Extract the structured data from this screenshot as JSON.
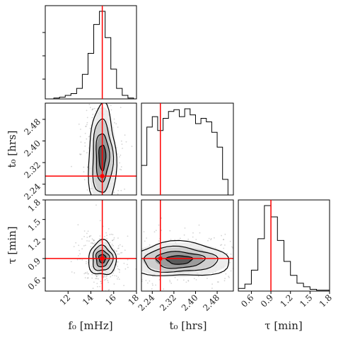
{
  "chart_data": {
    "type": "scatter",
    "title": "",
    "parameters": [
      {
        "label": "f₀ [mHz]",
        "range": [
          10,
          18
        ],
        "truth": 15,
        "ticks": [
          "12",
          "14",
          "16",
          "18"
        ],
        "tick_values": [
          12,
          14,
          16,
          18
        ]
      },
      {
        "label": "t₀ [hrs]",
        "range": [
          2.2,
          2.54
        ],
        "truth": 2.27,
        "ticks": [
          "2.24",
          "2.32",
          "2.40",
          "2.48"
        ],
        "tick_values": [
          2.24,
          2.32,
          2.4,
          2.48
        ]
      },
      {
        "label": "τ [min]",
        "range": [
          0.4,
          1.8
        ],
        "truth": 0.9,
        "ticks": [
          "0.6",
          "0.9",
          "1.2",
          "1.5",
          "1.8"
        ],
        "tick_values": [
          0.6,
          0.9,
          1.2,
          1.5,
          1.8
        ]
      }
    ],
    "marginals": {
      "f0": {
        "bin_centers": [
          11.0,
          11.5,
          12.0,
          12.5,
          13.0,
          13.5,
          14.0,
          14.5,
          15.0,
          15.5,
          16.0,
          16.5,
          17.0,
          17.5
        ],
        "counts": [
          1,
          2,
          4,
          6,
          12,
          28,
          52,
          85,
          100,
          70,
          34,
          12,
          4,
          1
        ]
      },
      "t0": {
        "bin_centers": [
          2.21,
          2.23,
          2.25,
          2.27,
          2.29,
          2.31,
          2.33,
          2.35,
          2.37,
          2.39,
          2.41,
          2.43,
          2.45,
          2.47,
          2.49,
          2.51
        ],
        "counts": [
          34,
          78,
          90,
          74,
          88,
          96,
          98,
          90,
          99,
          92,
          82,
          88,
          84,
          72,
          55,
          18
        ]
      },
      "tau": {
        "bin_centers": [
          0.45,
          0.55,
          0.65,
          0.75,
          0.85,
          0.95,
          1.05,
          1.15,
          1.25,
          1.35,
          1.45,
          1.55,
          1.65,
          1.75
        ],
        "counts": [
          3,
          8,
          24,
          60,
          98,
          85,
          58,
          34,
          18,
          9,
          5,
          2,
          1,
          1
        ]
      }
    },
    "joint_2d": [
      {
        "x": "f0",
        "y": "t0",
        "center": [
          15.0,
          2.34
        ],
        "spread": [
          0.55,
          0.085
        ]
      },
      {
        "x": "f0",
        "y": "tau",
        "center": [
          15.0,
          0.9
        ],
        "spread": [
          0.55,
          0.12
        ]
      },
      {
        "x": "t0",
        "y": "tau",
        "center": [
          2.34,
          0.88
        ],
        "spread": [
          0.085,
          0.12
        ]
      }
    ],
    "grid": false,
    "truth_color": "#ff0000"
  }
}
